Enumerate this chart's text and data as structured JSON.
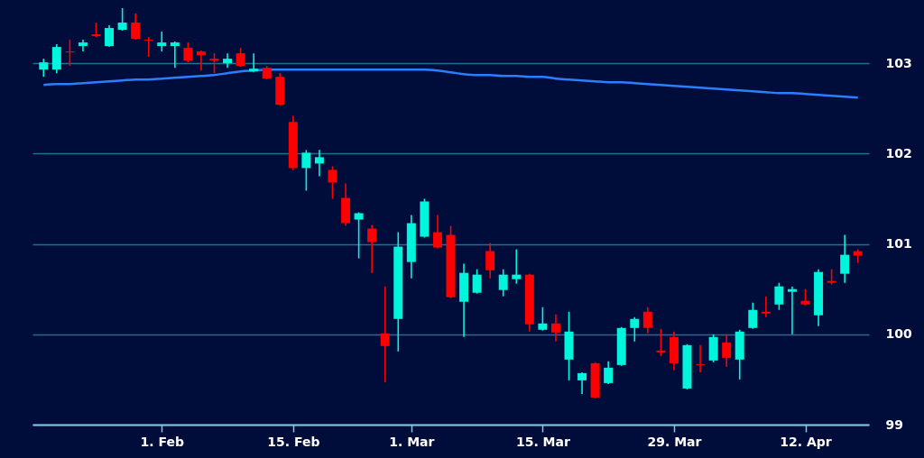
{
  "chart_data": {
    "type": "candlestick",
    "categories": [
      null,
      null,
      null,
      null,
      null,
      null,
      null,
      null,
      null,
      "1. Feb",
      null,
      null,
      null,
      null,
      null,
      null,
      null,
      null,
      null,
      "15. Feb",
      null,
      null,
      null,
      null,
      null,
      null,
      null,
      null,
      "1. Mar",
      null,
      null,
      null,
      null,
      null,
      null,
      null,
      null,
      null,
      "15. Mar",
      null,
      null,
      null,
      null,
      null,
      null,
      null,
      null,
      null,
      "29. Mar",
      null,
      null,
      null,
      null,
      null,
      null,
      null,
      null,
      null,
      "12. Apr",
      null,
      null,
      null,
      null
    ],
    "ohlc": [
      [
        102.93,
        103.05,
        102.85,
        103.01
      ],
      [
        102.93,
        103.21,
        102.89,
        103.18
      ],
      [
        103.13,
        103.26,
        102.97,
        103.12
      ],
      [
        103.19,
        103.26,
        103.13,
        103.23
      ],
      [
        103.32,
        103.45,
        103.29,
        103.3
      ],
      [
        103.19,
        103.42,
        103.18,
        103.39
      ],
      [
        103.37,
        103.61,
        103.36,
        103.45
      ],
      [
        103.45,
        103.55,
        103.26,
        103.27
      ],
      [
        103.26,
        103.29,
        103.07,
        103.25
      ],
      [
        103.19,
        103.35,
        103.13,
        103.23
      ],
      [
        103.19,
        103.24,
        102.95,
        103.23
      ],
      [
        103.17,
        103.23,
        103.01,
        103.03
      ],
      [
        103.13,
        103.14,
        102.92,
        103.09
      ],
      [
        103.05,
        103.11,
        102.89,
        103.03
      ],
      [
        103.0,
        103.11,
        102.95,
        103.05
      ],
      [
        103.11,
        103.17,
        102.96,
        102.97
      ],
      [
        102.91,
        103.11,
        102.9,
        102.94
      ],
      [
        102.95,
        102.97,
        102.82,
        102.83
      ],
      [
        102.85,
        102.89,
        102.53,
        102.54
      ],
      [
        102.35,
        102.42,
        101.82,
        101.84
      ],
      [
        101.84,
        102.04,
        101.59,
        102.01
      ],
      [
        101.89,
        102.04,
        101.75,
        101.96
      ],
      [
        101.82,
        101.86,
        101.5,
        101.68
      ],
      [
        101.51,
        101.67,
        101.2,
        101.23
      ],
      [
        101.27,
        101.35,
        100.84,
        101.34
      ],
      [
        101.17,
        101.21,
        100.68,
        101.02
      ],
      [
        100.01,
        100.53,
        99.47,
        99.87
      ],
      [
        100.17,
        101.13,
        99.81,
        100.97
      ],
      [
        100.8,
        101.32,
        100.62,
        101.23
      ],
      [
        101.08,
        101.5,
        101.07,
        101.47
      ],
      [
        101.13,
        101.32,
        100.95,
        100.96
      ],
      [
        101.1,
        101.2,
        100.4,
        100.41
      ],
      [
        100.36,
        100.78,
        99.97,
        100.68
      ],
      [
        100.46,
        100.72,
        100.45,
        100.66
      ],
      [
        100.92,
        101.01,
        100.62,
        100.71
      ],
      [
        100.49,
        100.72,
        100.42,
        100.66
      ],
      [
        100.61,
        100.94,
        100.56,
        100.66
      ],
      [
        100.66,
        100.67,
        100.03,
        100.11
      ],
      [
        100.05,
        100.3,
        100.04,
        100.12
      ],
      [
        100.12,
        100.22,
        99.92,
        100.02
      ],
      [
        99.72,
        100.25,
        99.49,
        100.03
      ],
      [
        99.49,
        99.58,
        99.34,
        99.57
      ],
      [
        99.68,
        99.69,
        99.29,
        99.3
      ],
      [
        99.46,
        99.7,
        99.45,
        99.63
      ],
      [
        99.66,
        100.08,
        99.65,
        100.07
      ],
      [
        100.07,
        100.19,
        99.92,
        100.17
      ],
      [
        100.25,
        100.3,
        100.01,
        100.07
      ],
      [
        99.82,
        100.06,
        99.76,
        99.8
      ],
      [
        99.97,
        100.03,
        99.6,
        99.68
      ],
      [
        99.4,
        99.89,
        99.39,
        99.88
      ],
      [
        99.67,
        99.88,
        99.58,
        99.66
      ],
      [
        99.71,
        100.0,
        99.69,
        99.97
      ],
      [
        99.91,
        100.0,
        99.64,
        99.74
      ],
      [
        99.72,
        100.05,
        99.5,
        100.03
      ],
      [
        100.07,
        100.35,
        100.06,
        100.27
      ],
      [
        100.25,
        100.42,
        100.19,
        100.23
      ],
      [
        100.33,
        100.57,
        100.27,
        100.53
      ],
      [
        100.47,
        100.53,
        100.0,
        100.5
      ],
      [
        100.37,
        100.5,
        100.32,
        100.33
      ],
      [
        100.21,
        100.72,
        100.09,
        100.69
      ],
      [
        100.59,
        100.72,
        100.55,
        100.57
      ],
      [
        100.67,
        101.1,
        100.57,
        100.88
      ],
      [
        100.92,
        100.94,
        100.79,
        100.87
      ]
    ],
    "colors": [
      "#00f5dc",
      "#00f5dc",
      "#ff0000",
      "#00f5dc",
      "#ff0000",
      "#00f5dc",
      "#00f5dc",
      "#ff0000",
      "#ff0000",
      "#00f5dc",
      "#00f5dc",
      "#ff0000",
      "#ff0000",
      "#ff0000",
      "#00f5dc",
      "#ff0000",
      "#00f5dc",
      "#ff0000",
      "#ff0000",
      "#ff0000",
      "#00f5dc",
      "#00f5dc",
      "#ff0000",
      "#ff0000",
      "#00f5dc",
      "#ff0000",
      "#ff0000",
      "#00f5dc",
      "#00f5dc",
      "#00f5dc",
      "#ff0000",
      "#ff0000",
      "#00f5dc",
      "#00f5dc",
      "#ff0000",
      "#00f5dc",
      "#00f5dc",
      "#ff0000",
      "#00f5dc",
      "#ff0000",
      "#00f5dc",
      "#00f5dc",
      "#ff0000",
      "#00f5dc",
      "#00f5dc",
      "#00f5dc",
      "#ff0000",
      "#ff0000",
      "#ff0000",
      "#00f5dc",
      "#ff0000",
      "#00f5dc",
      "#ff0000",
      "#00f5dc",
      "#00f5dc",
      "#ff0000",
      "#00f5dc",
      "#00f5dc",
      "#ff0000",
      "#00f5dc",
      "#ff0000",
      "#00f5dc",
      "#ff0000"
    ],
    "series": [
      {
        "type": "line",
        "color": "#2a7fff",
        "values": [
          102.76,
          102.77,
          102.77,
          102.78,
          102.79,
          102.8,
          102.81,
          102.82,
          102.82,
          102.83,
          102.84,
          102.85,
          102.86,
          102.87,
          102.89,
          102.91,
          102.92,
          102.93,
          102.93,
          102.93,
          102.93,
          102.93,
          102.93,
          102.93,
          102.93,
          102.93,
          102.93,
          102.93,
          102.93,
          102.93,
          102.92,
          102.9,
          102.88,
          102.87,
          102.87,
          102.86,
          102.86,
          102.85,
          102.85,
          102.83,
          102.82,
          102.81,
          102.8,
          102.79,
          102.79,
          102.78,
          102.77,
          102.76,
          102.75,
          102.74,
          102.73,
          102.72,
          102.71,
          102.7,
          102.69,
          102.68,
          102.67,
          102.67,
          102.66,
          102.65,
          102.64,
          102.63,
          102.62
        ]
      }
    ],
    "ylim": [
      99,
      103.7
    ],
    "yticks": [
      99,
      100,
      101,
      102,
      103
    ],
    "grid": "y"
  }
}
